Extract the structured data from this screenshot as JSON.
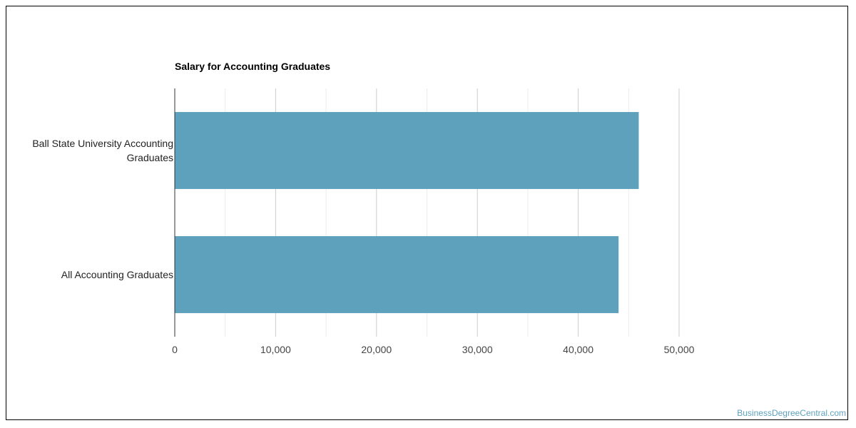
{
  "chart_data": {
    "type": "bar",
    "orientation": "horizontal",
    "title": "Salary for Accounting Graduates",
    "categories": [
      "Ball State University Accounting Graduates",
      "All Accounting Graduates"
    ],
    "values": [
      46000,
      44000
    ],
    "xlim": [
      0,
      50000
    ],
    "xticks": [
      0,
      10000,
      20000,
      30000,
      40000,
      50000
    ],
    "xtick_labels": [
      "0",
      "10,000",
      "20,000",
      "30,000",
      "40,000",
      "50,000"
    ],
    "xlabel": "",
    "ylabel": "",
    "grid": true,
    "legend": "none",
    "bar_color": "#5ea1bd"
  },
  "watermark": "BusinessDegreeCentral.com"
}
